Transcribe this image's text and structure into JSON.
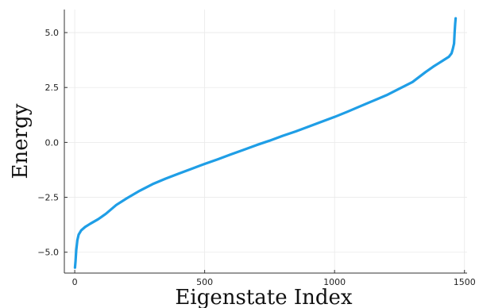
{
  "chart_data": {
    "type": "line",
    "title": "",
    "xlabel": "Eigenstate Index",
    "ylabel": "Energy",
    "xlim": [
      -40,
      1510
    ],
    "ylim": [
      -5.95,
      6.05
    ],
    "x_ticks": [
      0,
      500,
      1000,
      1500
    ],
    "x_tick_labels": [
      "0",
      "500",
      "1000",
      "1500"
    ],
    "y_ticks": [
      -5.0,
      -2.5,
      0.0,
      2.5,
      5.0
    ],
    "y_tick_labels": [
      "−5.0",
      "−2.5",
      "0.0",
      "2.5",
      "5.0"
    ],
    "grid": true,
    "legend": "none",
    "series": [
      {
        "color": "#1f9ee6",
        "x": [
          1,
          3,
          6,
          10,
          15,
          25,
          40,
          60,
          90,
          120,
          160,
          200,
          250,
          300,
          350,
          400,
          450,
          500,
          550,
          600,
          650,
          700,
          750,
          800,
          850,
          900,
          950,
          1000,
          1050,
          1100,
          1150,
          1200,
          1250,
          1300,
          1350,
          1380,
          1400,
          1420,
          1440,
          1450,
          1455,
          1460,
          1462,
          1464,
          1466
        ],
        "y": [
          -5.7,
          -5.4,
          -4.9,
          -4.45,
          -4.2,
          -4.0,
          -3.85,
          -3.7,
          -3.5,
          -3.25,
          -2.85,
          -2.55,
          -2.2,
          -1.9,
          -1.65,
          -1.42,
          -1.2,
          -0.98,
          -0.77,
          -0.55,
          -0.34,
          -0.12,
          0.08,
          0.3,
          0.5,
          0.72,
          0.94,
          1.16,
          1.4,
          1.65,
          1.9,
          2.15,
          2.45,
          2.75,
          3.2,
          3.45,
          3.6,
          3.75,
          3.9,
          4.05,
          4.25,
          4.5,
          5.0,
          5.4,
          5.65
        ]
      }
    ]
  }
}
